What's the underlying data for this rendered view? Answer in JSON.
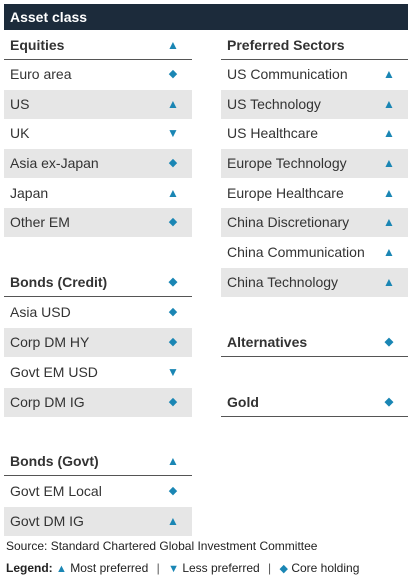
{
  "title": "Asset class",
  "icons": {
    "up": "▲",
    "down": "▼",
    "core": "◆"
  },
  "colors": {
    "header": "#1c2b3b",
    "accent": "#1a86b4",
    "shade": "#e6e6e6"
  },
  "equities": {
    "header": {
      "label": "Equities",
      "icon": "up"
    },
    "rows": [
      {
        "label": "Euro area",
        "icon": "core"
      },
      {
        "label": "US",
        "icon": "up"
      },
      {
        "label": "UK",
        "icon": "down"
      },
      {
        "label": "Asia ex-Japan",
        "icon": "core"
      },
      {
        "label": "Japan",
        "icon": "up"
      },
      {
        "label": "Other EM",
        "icon": "core"
      }
    ]
  },
  "bonds_credit": {
    "header": {
      "label": "Bonds (Credit)",
      "icon": "core"
    },
    "rows": [
      {
        "label": "Asia USD",
        "icon": "core"
      },
      {
        "label": "Corp DM HY",
        "icon": "core"
      },
      {
        "label": "Govt EM USD",
        "icon": "down"
      },
      {
        "label": "Corp DM IG",
        "icon": "core"
      }
    ]
  },
  "bonds_govt": {
    "header": {
      "label": "Bonds (Govt)",
      "icon": "up"
    },
    "rows": [
      {
        "label": "Govt EM Local",
        "icon": "core"
      },
      {
        "label": "Govt DM IG",
        "icon": "up"
      }
    ]
  },
  "preferred_sectors": {
    "header": {
      "label": "Preferred Sectors"
    },
    "rows": [
      {
        "label": "US Communication",
        "icon": "up"
      },
      {
        "label": "US Technology",
        "icon": "up"
      },
      {
        "label": "US Healthcare",
        "icon": "up"
      },
      {
        "label": "Europe Technology",
        "icon": "up"
      },
      {
        "label": "Europe Healthcare",
        "icon": "up"
      },
      {
        "label": "China Discretionary",
        "icon": "up"
      },
      {
        "label": "China Communication",
        "icon": "up"
      },
      {
        "label": "China Technology",
        "icon": "up"
      }
    ]
  },
  "alternatives": {
    "label": "Alternatives",
    "icon": "core"
  },
  "gold": {
    "label": "Gold",
    "icon": "core"
  },
  "source": "Source: Standard Chartered Global Investment Committee",
  "legend": {
    "title": "Legend:",
    "most": "Most preferred",
    "less": "Less preferred",
    "core": "Core holding",
    "separator": "|"
  }
}
